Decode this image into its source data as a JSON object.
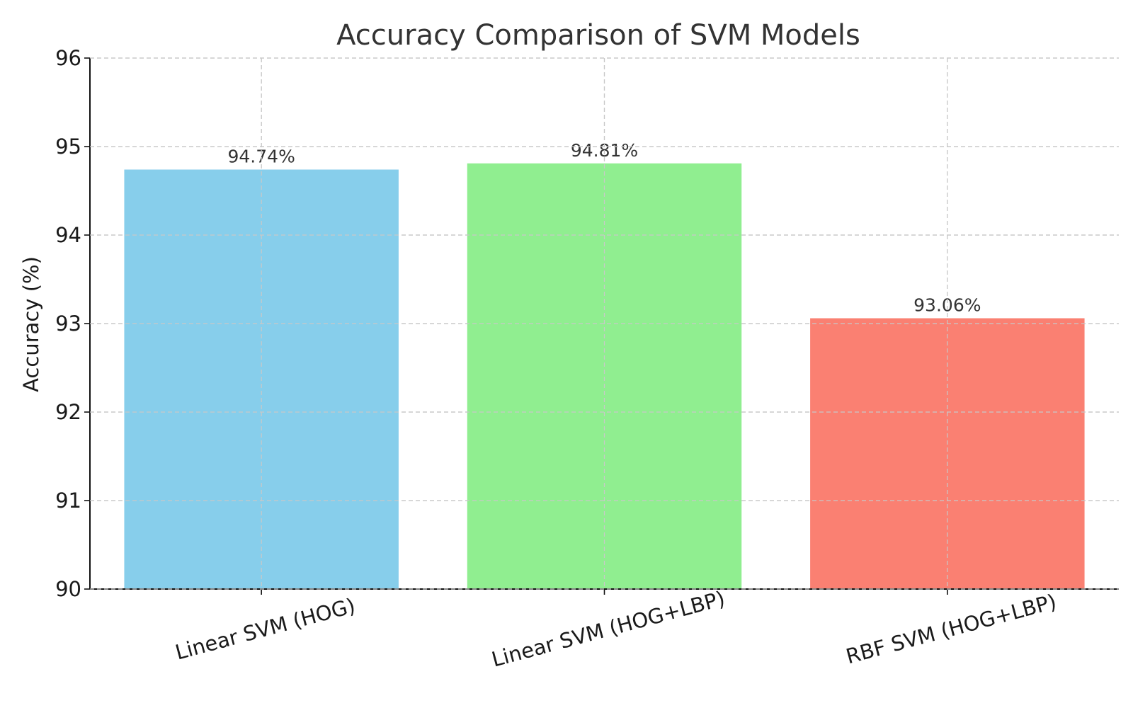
{
  "chart_data": {
    "type": "bar",
    "title": "Accuracy Comparison of SVM Models",
    "xlabel": "",
    "ylabel": "Accuracy (%)",
    "ylim": [
      90,
      96
    ],
    "yticks": [
      90,
      91,
      92,
      93,
      94,
      95,
      96
    ],
    "categories": [
      "Linear SVM (HOG)",
      "Linear SVM (HOG+LBP)",
      "RBF SVM (HOG+LBP)"
    ],
    "values": [
      94.74,
      94.81,
      93.06
    ],
    "data_labels": [
      "94.74%",
      "94.81%",
      "93.06%"
    ],
    "colors": [
      "#87CEEB",
      "#90EE90",
      "#FA8072"
    ],
    "grid": true,
    "legend": "none"
  }
}
